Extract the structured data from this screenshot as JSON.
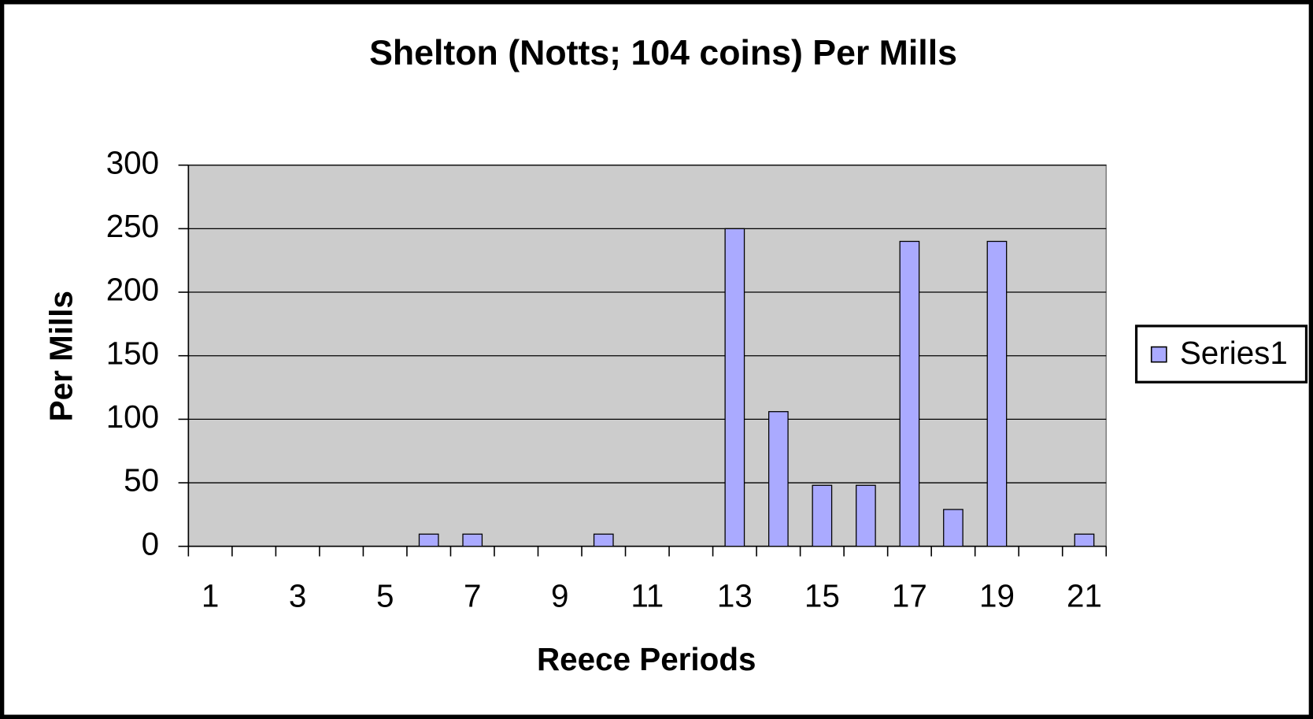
{
  "chart_data": {
    "type": "bar",
    "title": "Shelton (Notts; 104 coins) Per Mills",
    "x_label": "Reece Periods",
    "y_label": "Per Mills",
    "categories": [
      1,
      null,
      3,
      null,
      5,
      null,
      7,
      null,
      9,
      null,
      11,
      null,
      13,
      null,
      15,
      null,
      17,
      null,
      19,
      null,
      21
    ],
    "series": [
      {
        "name": "Series1",
        "color": "#aaaaff",
        "values": [
          0,
          0,
          0,
          0,
          0,
          9.6,
          9.6,
          0,
          0,
          9.6,
          0,
          0,
          250,
          106,
          48,
          48,
          240,
          29,
          240,
          0,
          9.6
        ]
      }
    ],
    "ylim": [
      0,
      300
    ],
    "yticks": [
      0,
      50,
      100,
      150,
      200,
      250,
      300
    ],
    "grid": true,
    "plot_background": "#cccccc",
    "legend": "right"
  }
}
